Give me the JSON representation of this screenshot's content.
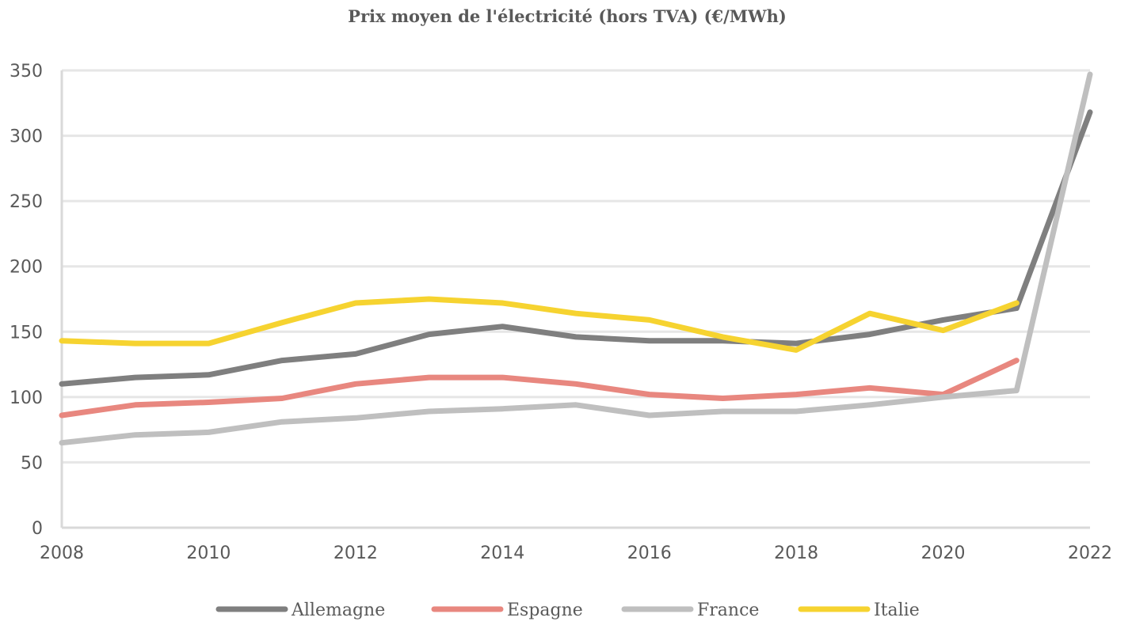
{
  "chart_data": {
    "type": "line",
    "title": "Prix moyen de l'électricité (hors TVA) (€/MWh)",
    "xlabel": "",
    "ylabel": "",
    "x": [
      2008,
      2009,
      2010,
      2011,
      2012,
      2013,
      2014,
      2015,
      2016,
      2017,
      2018,
      2019,
      2020,
      2021,
      2022
    ],
    "x_tick_labels": [
      "2008",
      "2010",
      "2012",
      "2014",
      "2016",
      "2018",
      "2020",
      "2022"
    ],
    "y_tick_labels": [
      "0",
      "50",
      "100",
      "150",
      "200",
      "250",
      "300",
      "350"
    ],
    "xlim": [
      2008,
      2022
    ],
    "ylim": [
      0,
      350
    ],
    "grid": true,
    "legend_position": "bottom",
    "series": [
      {
        "name": "Allemagne",
        "color": "#7f7f7f",
        "values": [
          110,
          115,
          117,
          128,
          133,
          148,
          154,
          146,
          143,
          143,
          141,
          148,
          159,
          168,
          318
        ]
      },
      {
        "name": "Espagne",
        "color": "#e8877f",
        "values": [
          86,
          94,
          96,
          99,
          110,
          115,
          115,
          110,
          102,
          99,
          102,
          107,
          102,
          128,
          null
        ]
      },
      {
        "name": "France",
        "color": "#bfbfbf",
        "values": [
          65,
          71,
          73,
          81,
          84,
          89,
          91,
          94,
          86,
          89,
          89,
          94,
          100,
          105,
          347
        ]
      },
      {
        "name": "Italie",
        "color": "#f6d330",
        "values": [
          143,
          141,
          141,
          157,
          172,
          175,
          172,
          164,
          159,
          146,
          136,
          164,
          151,
          172,
          null
        ]
      }
    ]
  }
}
